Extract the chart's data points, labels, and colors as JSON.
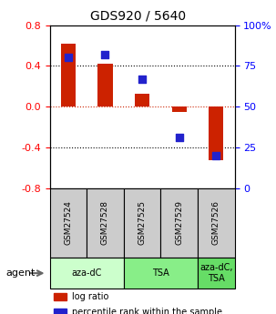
{
  "title": "GDS920 / 5640",
  "samples": [
    "GSM27524",
    "GSM27528",
    "GSM27525",
    "GSM27529",
    "GSM27526"
  ],
  "log_ratios": [
    0.62,
    0.42,
    0.13,
    -0.05,
    -0.52
  ],
  "percentile_ranks": [
    80,
    82,
    67,
    31,
    20
  ],
  "ylim_left": [
    -0.8,
    0.8
  ],
  "ylim_right": [
    0,
    100
  ],
  "yticks_left": [
    -0.8,
    -0.4,
    0.0,
    0.4,
    0.8
  ],
  "yticks_right": [
    0,
    25,
    50,
    75,
    100
  ],
  "ytick_labels_right": [
    "0",
    "25",
    "50",
    "75",
    "100%"
  ],
  "bar_color": "#cc2200",
  "dot_color": "#2222cc",
  "groups": [
    {
      "label": "aza-dC",
      "start": 0,
      "end": 2,
      "color": "#ccffcc"
    },
    {
      "label": "TSA",
      "start": 2,
      "end": 4,
      "color": "#88ee88"
    },
    {
      "label": "aza-dC,\nTSA",
      "start": 4,
      "end": 5,
      "color": "#66dd66"
    }
  ],
  "agent_label": "agent",
  "legend_items": [
    {
      "color": "#cc2200",
      "label": "log ratio"
    },
    {
      "color": "#2222cc",
      "label": "percentile rank within the sample"
    }
  ],
  "bar_width": 0.4,
  "dot_size": 30,
  "background_color": "#ffffff",
  "dotted_line_color": "#000000",
  "zero_line_color": "#cc2200"
}
